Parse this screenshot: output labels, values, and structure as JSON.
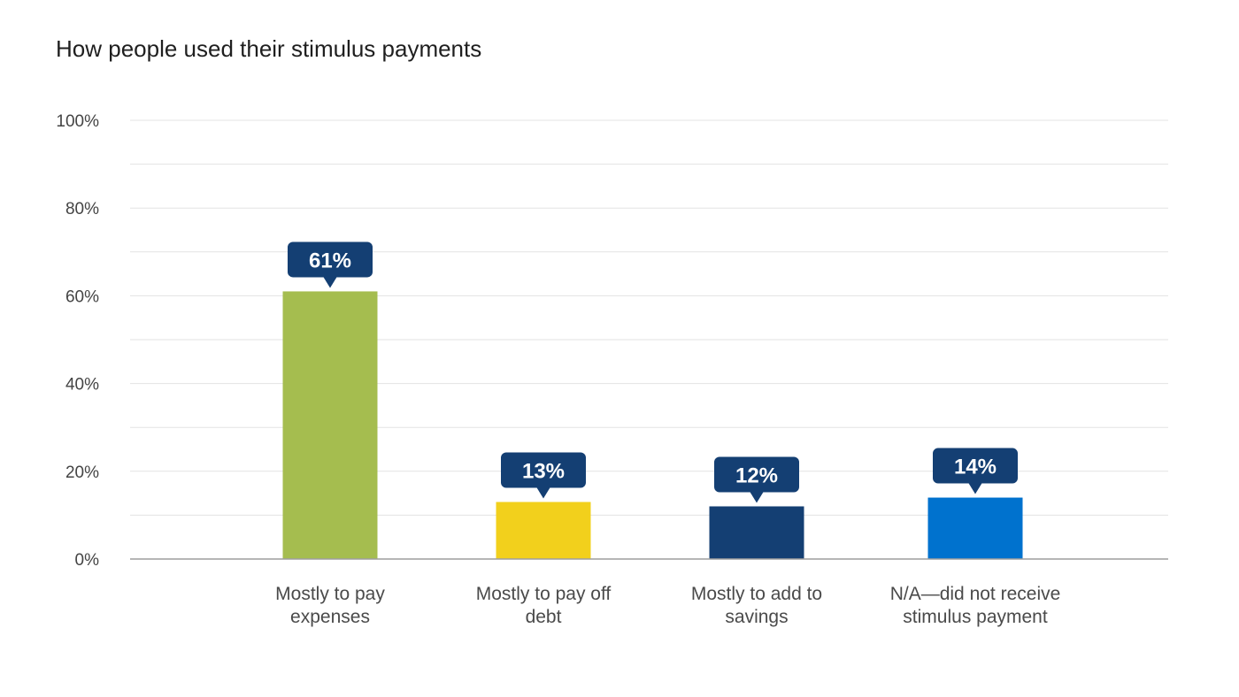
{
  "chart_data": {
    "type": "bar",
    "title": "How people used their stimulus payments",
    "xlabel": "",
    "ylabel": "",
    "ylim": [
      0,
      100
    ],
    "yticks": [
      "0%",
      "20%",
      "40%",
      "60%",
      "80%",
      "100%"
    ],
    "grid": true,
    "legend": "none",
    "categories": [
      [
        "Mostly to pay",
        "expenses"
      ],
      [
        "Mostly to pay off",
        "debt"
      ],
      [
        "Mostly to add to",
        "savings"
      ],
      [
        "N/A—did not receive",
        "stimulus payment"
      ]
    ],
    "values": [
      61,
      13,
      12,
      14
    ],
    "data_labels": [
      "61%",
      "13%",
      "12%",
      "14%"
    ],
    "colors": [
      "#a5bd4f",
      "#f2d01c",
      "#143f73",
      "#0072ce"
    ],
    "label_color": "#143f73"
  }
}
